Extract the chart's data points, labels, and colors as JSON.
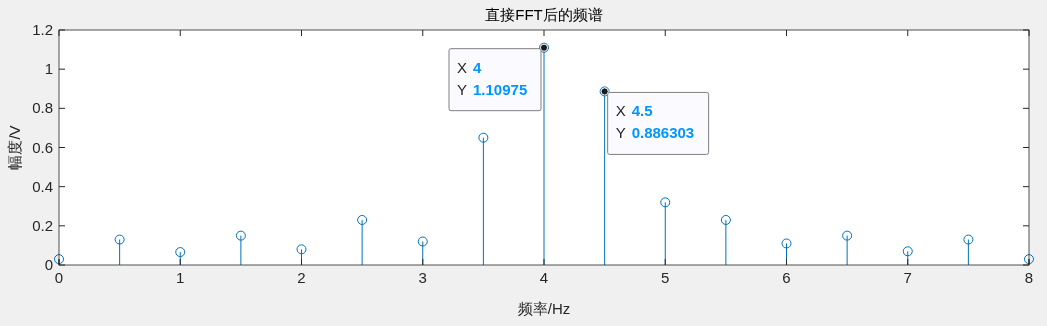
{
  "chart_data": {
    "type": "lollipop",
    "title": "直接FFT后的频谱",
    "xlabel": "频率/Hz",
    "ylabel": "幅度/V",
    "x": [
      0,
      0.5,
      1,
      1.5,
      2,
      2.5,
      3,
      3.5,
      4,
      4.5,
      5,
      5.5,
      6,
      6.5,
      7,
      7.5,
      8
    ],
    "series": [
      {
        "color": "#0072bd",
        "values": [
          0.03,
          0.13,
          0.066,
          0.15,
          0.08,
          0.23,
          0.12,
          0.65,
          1.10975,
          0.886303,
          0.32,
          0.23,
          0.11,
          0.15,
          0.07,
          0.13,
          0.03
        ]
      }
    ],
    "xlim": [
      0,
      8
    ],
    "xticks": [
      0,
      1,
      2,
      3,
      4,
      5,
      6,
      7,
      8
    ],
    "ylim": [
      0,
      1.2
    ],
    "yticks": [
      0,
      0.2,
      0.4,
      0.6,
      0.8,
      1,
      1.2
    ],
    "marker": "circle",
    "grid": false,
    "annotations": [
      {
        "text": "X 4\nY 1.10975",
        "x": 4,
        "y": 1.10975
      },
      {
        "text": "X 4.5\nY 0.886303",
        "x": 4.5,
        "y": 0.886303
      }
    ]
  }
}
